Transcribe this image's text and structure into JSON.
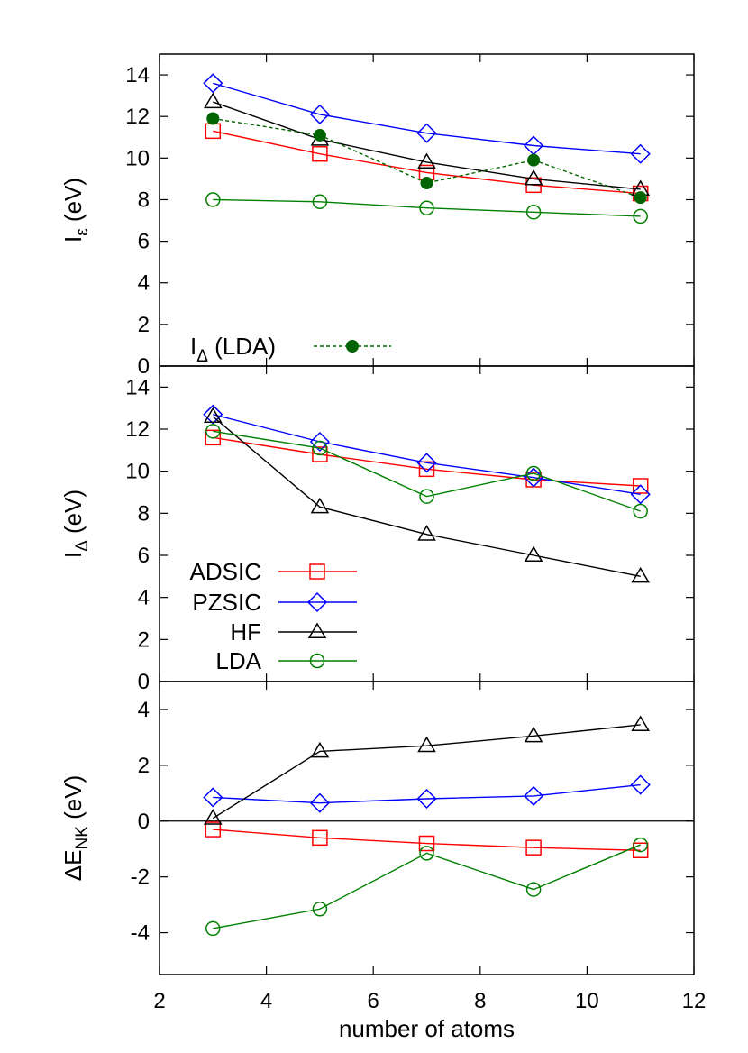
{
  "colors": {
    "ADSIC": "#ff0000",
    "PZSIC": "#0000ff",
    "HF": "#000000",
    "LDA": "#008000",
    "I_delta_LDA": "#006400",
    "zero_line": "#000000"
  },
  "chart_data": [
    {
      "type": "line",
      "panel": "top",
      "ylabel": "I",
      "ylabel_sub": "ε",
      "ylabel_unit": "(eV)",
      "xlim": [
        2,
        12
      ],
      "ylim": [
        0,
        15
      ],
      "yticks": [
        0,
        2,
        4,
        6,
        8,
        10,
        12,
        14
      ],
      "ytick_labels": [
        "0",
        "2",
        "4",
        "6",
        "8",
        "10",
        "12",
        "14"
      ],
      "legend": {
        "label_main": "I",
        "label_sub": "Δ",
        "label_rest": "(LDA)",
        "placement": "bottom-left"
      },
      "x": [
        3,
        5,
        7,
        9,
        11
      ],
      "series": [
        {
          "name": "ADSIC",
          "key": "ADSIC",
          "marker": "square",
          "dashed": false,
          "values": [
            11.3,
            10.2,
            9.3,
            8.7,
            8.3
          ]
        },
        {
          "name": "PZSIC",
          "key": "PZSIC",
          "marker": "diamond",
          "dashed": false,
          "values": [
            13.6,
            12.1,
            11.2,
            10.6,
            10.2
          ]
        },
        {
          "name": "HF",
          "key": "HF",
          "marker": "triangle",
          "dashed": false,
          "values": [
            12.7,
            10.9,
            9.8,
            9.0,
            8.5
          ]
        },
        {
          "name": "LDA",
          "key": "LDA",
          "marker": "circle",
          "dashed": false,
          "values": [
            8.0,
            7.9,
            7.6,
            7.4,
            7.2
          ]
        },
        {
          "name": "I_Δ (LDA)",
          "key": "I_delta_LDA",
          "marker": "filled-circle",
          "dashed": true,
          "values": [
            11.9,
            11.1,
            8.8,
            9.9,
            8.1
          ]
        }
      ]
    },
    {
      "type": "line",
      "panel": "middle",
      "ylabel": "I",
      "ylabel_sub": "Δ",
      "ylabel_unit": "(eV)",
      "xlim": [
        2,
        12
      ],
      "ylim": [
        0,
        15
      ],
      "yticks": [
        0,
        2,
        4,
        6,
        8,
        10,
        12,
        14
      ],
      "ytick_labels": [
        "0",
        "2",
        "4",
        "6",
        "8",
        "10",
        "12",
        "14"
      ],
      "legend": {
        "placement": "bottom-left",
        "entries": [
          "ADSIC",
          "PZSIC",
          "HF",
          "LDA"
        ]
      },
      "x": [
        3,
        5,
        7,
        9,
        11
      ],
      "series": [
        {
          "name": "ADSIC",
          "key": "ADSIC",
          "marker": "square",
          "dashed": false,
          "values": [
            11.6,
            10.8,
            10.1,
            9.6,
            9.3
          ]
        },
        {
          "name": "PZSIC",
          "key": "PZSIC",
          "marker": "diamond",
          "dashed": false,
          "values": [
            12.7,
            11.4,
            10.4,
            9.7,
            8.9
          ]
        },
        {
          "name": "HF",
          "key": "HF",
          "marker": "triangle",
          "dashed": false,
          "values": [
            12.6,
            8.3,
            7.0,
            6.0,
            5.0
          ]
        },
        {
          "name": "LDA",
          "key": "LDA",
          "marker": "circle",
          "dashed": false,
          "values": [
            11.9,
            11.1,
            8.8,
            9.9,
            8.1
          ]
        }
      ]
    },
    {
      "type": "line",
      "panel": "bottom",
      "ylabel": "ΔE",
      "ylabel_sub": "NK",
      "ylabel_unit": "(eV)",
      "xlabel": "number of atoms",
      "xlim": [
        2,
        12
      ],
      "ylim": [
        -5.5,
        5.0
      ],
      "yticks": [
        -4,
        -2,
        0,
        2,
        4
      ],
      "ytick_labels": [
        "-4",
        "-2",
        "0",
        "2",
        "4"
      ],
      "xticks": [
        2,
        4,
        6,
        8,
        10,
        12
      ],
      "xtick_labels": [
        "2",
        "4",
        "6",
        "8",
        "10",
        "12"
      ],
      "zero_line": true,
      "x": [
        3,
        5,
        7,
        9,
        11
      ],
      "series": [
        {
          "name": "ADSIC",
          "key": "ADSIC",
          "marker": "square",
          "dashed": false,
          "values": [
            -0.3,
            -0.6,
            -0.8,
            -0.95,
            -1.05
          ]
        },
        {
          "name": "PZSIC",
          "key": "PZSIC",
          "marker": "diamond",
          "dashed": false,
          "values": [
            0.85,
            0.65,
            0.8,
            0.9,
            1.3
          ]
        },
        {
          "name": "HF",
          "key": "HF",
          "marker": "triangle",
          "dashed": false,
          "values": [
            0.1,
            2.5,
            2.7,
            3.05,
            3.45
          ]
        },
        {
          "name": "LDA",
          "key": "LDA",
          "marker": "circle",
          "dashed": false,
          "values": [
            -3.85,
            -3.15,
            -1.15,
            -2.45,
            -0.85
          ]
        }
      ]
    }
  ]
}
